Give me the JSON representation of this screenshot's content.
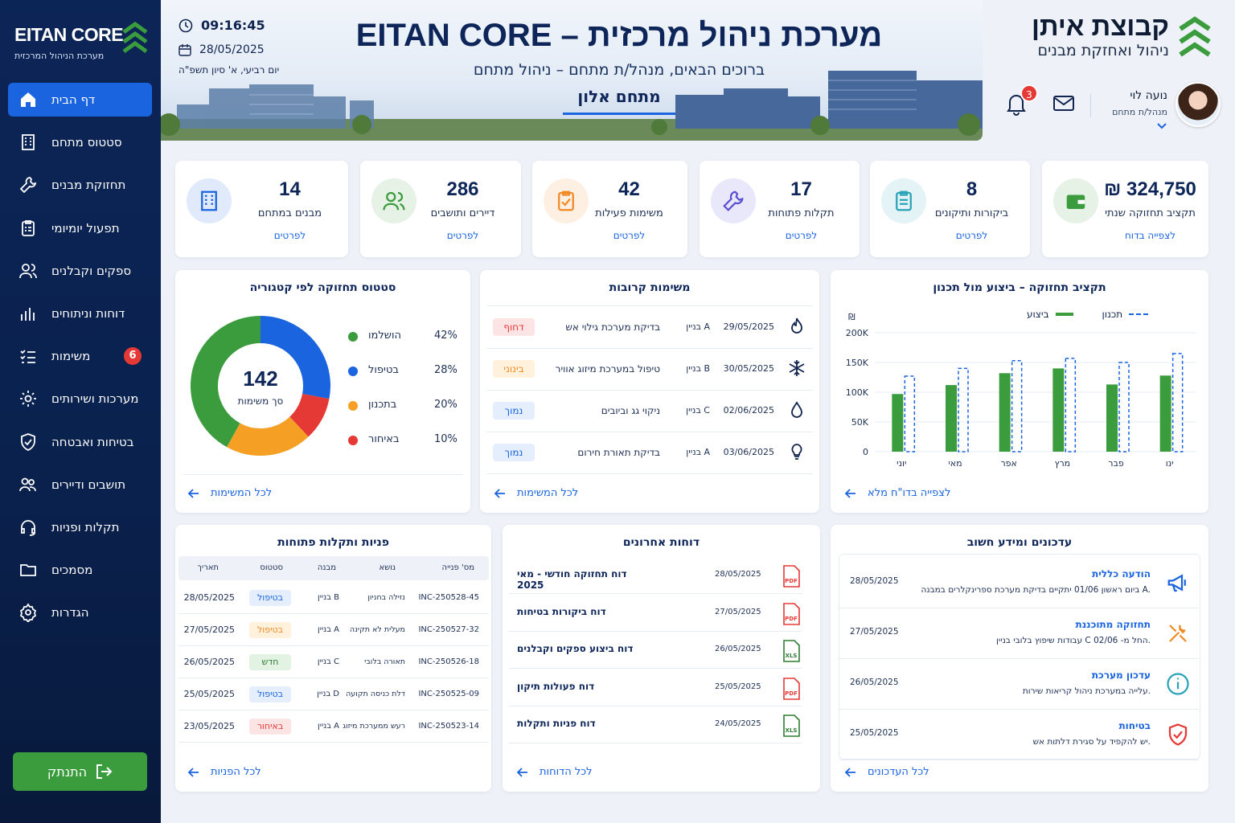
{
  "sidebar": {
    "title": "EITAN CORE",
    "subtitle": "מערכת הניהול המרכזית",
    "items": [
      {
        "label": "דף הבית",
        "icon": "home-icon"
      },
      {
        "label": "סטטוס מתחם",
        "icon": "building-icon"
      },
      {
        "label": "תחזוקת מבנים",
        "icon": "wrench-icon"
      },
      {
        "label": "תפעול יומיומי",
        "icon": "clipboard-icon"
      },
      {
        "label": "ספקים וקבלנים",
        "icon": "users-icon"
      },
      {
        "label": "דוחות וניתוחים",
        "icon": "bar-chart-icon"
      },
      {
        "label": "משימות",
        "icon": "list-check-icon",
        "badge": "6"
      },
      {
        "label": "מערכות ושירותים",
        "icon": "gear-icon"
      },
      {
        "label": "בטיחות ואבטחה",
        "icon": "shield-icon"
      },
      {
        "label": "תושבים ודיירים",
        "icon": "people-icon"
      },
      {
        "label": "תקלות ופניות",
        "icon": "headset-icon"
      },
      {
        "label": "מסמכים",
        "icon": "folder-icon"
      },
      {
        "label": "הגדרות",
        "icon": "settings-icon"
      }
    ],
    "logout": "התנתק"
  },
  "header": {
    "time": "09:16:45",
    "date": "28/05/2025",
    "hebrew_date": "יום רביעי, א' סיון תשפ\"ה",
    "title": "EITAN CORE – מערכת ניהול מרכזית",
    "welcome": "ברוכים הבאים, מנהל/ת מתחם – ניהול מתחם",
    "site": "מתחם אלון"
  },
  "brand": {
    "name": "קבוצת איתן",
    "tagline": "ניהול ואחזקת מבנים"
  },
  "user": {
    "name": "נועה לוי",
    "role": "מנהל/ת מתחם",
    "notifications": "3"
  },
  "stats": [
    {
      "value": "₪ 324,750",
      "label": "תקציב תחזוקה שנתי",
      "link": "לצפייה בדוח",
      "color": "#3a9c3d",
      "icon": "wallet-icon"
    },
    {
      "value": "8",
      "label": "ביקורות ותיקונים",
      "link": "לפרטים",
      "color": "#2aa3b8",
      "icon": "checklist-icon"
    },
    {
      "value": "17",
      "label": "תקלות פתוחות",
      "link": "לפרטים",
      "color": "#5b4fd6",
      "icon": "wrench-icon"
    },
    {
      "value": "42",
      "label": "משימות פעילות",
      "link": "לפרטים",
      "color": "#f08a24",
      "icon": "task-icon"
    },
    {
      "value": "286",
      "label": "דיירים ותושבים",
      "link": "לפרטים",
      "color": "#3a9c3d",
      "icon": "users-icon"
    },
    {
      "value": "14",
      "label": "מבנים במתחם",
      "link": "לפרטים",
      "color": "#1a64e0",
      "icon": "building-icon"
    }
  ],
  "donut": {
    "title": "סטטוס תחזוקה לפי קטגוריה",
    "total": "142",
    "total_label": "סך משימות",
    "items": [
      {
        "label": "הושלמו",
        "pct": "42%",
        "value": 42,
        "color": "#3a9c3d"
      },
      {
        "label": "בטיפול",
        "pct": "28%",
        "value": 28,
        "color": "#1a64e0"
      },
      {
        "label": "בתכנון",
        "pct": "20%",
        "value": 20,
        "color": "#f5a024"
      },
      {
        "label": "באיחור",
        "pct": "10%",
        "value": 10,
        "color": "#e53935"
      }
    ],
    "link": "לכל המשימות"
  },
  "tasks": {
    "title": "משימות קרובות",
    "rows": [
      {
        "date": "29/05/2025",
        "building": "בניין A",
        "task": "בדיקת מערכת גילוי אש",
        "priority": "דחוף",
        "icon": "fire-icon"
      },
      {
        "date": "30/05/2025",
        "building": "בניין B",
        "task": "טיפול במערכת מיזוג אוויר",
        "priority": "בינוני",
        "icon": "snowflake-icon"
      },
      {
        "date": "02/06/2025",
        "building": "בניין C",
        "task": "ניקוי גג וביובים",
        "priority": "נמוך",
        "icon": "water-drop-icon"
      },
      {
        "date": "03/06/2025",
        "building": "בניין A",
        "task": "בדיקת תאורת חירום",
        "priority": "נמוך",
        "icon": "lightbulb-icon"
      }
    ],
    "link": "לכל המשימות"
  },
  "budget": {
    "title": "תקציב תחזוקה – ביצוע מול תכנון",
    "legend_actual": "ביצוע",
    "legend_plan": "תכנון",
    "link": "לצפייה בדו\"ח מלא"
  },
  "chart_data": {
    "type": "bar",
    "title": "תקציב תחזוקה – ביצוע מול תכנון",
    "ylabel": "₪",
    "categories": [
      "ינו",
      "פבר",
      "מרץ",
      "אפר",
      "מאי",
      "יוני"
    ],
    "series": [
      {
        "name": "ביצוע",
        "values": [
          128000,
          113000,
          140000,
          132000,
          112000,
          97000
        ],
        "color": "#3a9c3d"
      },
      {
        "name": "תכנון",
        "values": [
          165000,
          150000,
          157000,
          153000,
          140000,
          127000
        ],
        "color": "#1a64e0"
      }
    ],
    "ylim": [
      0,
      200000
    ],
    "yticks": [
      "0",
      "50K",
      "100K",
      "150K",
      "200K"
    ],
    "legend": "top"
  },
  "requests": {
    "title": "פניות ותקלות פתוחות",
    "headers": [
      "מס' פנייה",
      "נושא",
      "מבנה",
      "סטטוס",
      "תאריך"
    ],
    "rows": [
      {
        "id": "INC-250528-45",
        "topic": "נזילה בחניון",
        "building": "בניין B",
        "status": "בטיפול",
        "date": "28/05/2025"
      },
      {
        "id": "INC-250527-32",
        "topic": "מעלית לא תקינה",
        "building": "בניין A",
        "status": "בטיפול",
        "date": "27/05/2025"
      },
      {
        "id": "INC-250526-18",
        "topic": "תאורה בלובי",
        "building": "בניין C",
        "status": "חדש",
        "date": "26/05/2025"
      },
      {
        "id": "INC-250525-09",
        "topic": "דלת כניסה תקועה",
        "building": "בניין D",
        "status": "בטיפול",
        "date": "25/05/2025"
      },
      {
        "id": "INC-250523-14",
        "topic": "רעש ממערכת מיזוג",
        "building": "בניין A",
        "status": "באיחור",
        "date": "23/05/2025"
      }
    ],
    "link": "לכל הפניות"
  },
  "reports": {
    "title": "דוחות אחרונים",
    "rows": [
      {
        "name": "דוח תחזוקה חודשי - מאי 2025",
        "date": "28/05/2025",
        "type": "PDF"
      },
      {
        "name": "דוח ביקורות בטיחות",
        "date": "27/05/2025",
        "type": "PDF"
      },
      {
        "name": "דוח ביצוע ספקים וקבלנים",
        "date": "26/05/2025",
        "type": "XLS"
      },
      {
        "name": "דוח פעולות תיקון",
        "date": "25/05/2025",
        "type": "PDF"
      },
      {
        "name": "דוח פניות ותקלות",
        "date": "24/05/2025",
        "type": "XLS"
      }
    ],
    "link": "לכל הדוחות"
  },
  "updates": {
    "title": "עדכונים ומידע חשוב",
    "rows": [
      {
        "title": "הודעה כללית",
        "text": "ביום ראשון 01/06 יתקיים בדיקת מערכת ספרינקלרים במבנה A.",
        "date": "28/05/2025",
        "icon": "megaphone-icon"
      },
      {
        "title": "תחזוקה מתוכננת",
        "text": "עבודות שיפוץ בלובי בניין C החל מ- 02/06.",
        "date": "27/05/2025",
        "icon": "tools-icon"
      },
      {
        "title": "עדכון מערכת",
        "text": "עלייה במערכת ניהול קריאות שירות.",
        "date": "26/05/2025",
        "icon": "info-icon"
      },
      {
        "title": "בטיחות",
        "text": "יש להקפיד על סגירת דלתות אש.",
        "date": "25/05/2025",
        "icon": "shield-alert-icon"
      }
    ],
    "link": "לכל העדכונים"
  }
}
